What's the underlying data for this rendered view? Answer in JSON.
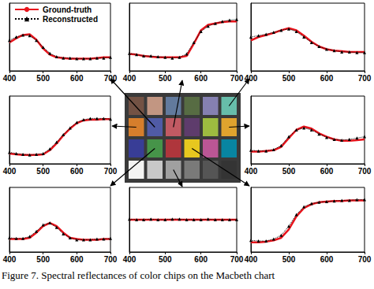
{
  "chart_data": [
    {
      "type": "line",
      "x": [
        400,
        420,
        440,
        460,
        480,
        500,
        520,
        540,
        560,
        580,
        600,
        620,
        640,
        660,
        680,
        700
      ],
      "xlim": [
        400,
        700
      ],
      "xticks": [
        400,
        500,
        600,
        700
      ],
      "ylim": [
        0,
        1
      ],
      "tick_labels": "x",
      "legend": "upper left",
      "series": [
        {
          "name": "Ground-truth",
          "color": "#e8141c",
          "line_style": "solid",
          "values": [
            0.42,
            0.48,
            0.53,
            0.54,
            0.46,
            0.33,
            0.24,
            0.2,
            0.19,
            0.18,
            0.18,
            0.18,
            0.18,
            0.19,
            0.2,
            0.2
          ]
        },
        {
          "name": "Reconstructed",
          "color": "#000000",
          "line_style": "dotted",
          "marker": "triangle",
          "values": [
            0.45,
            0.5,
            0.53,
            0.52,
            0.45,
            0.35,
            0.26,
            0.21,
            0.19,
            0.19,
            0.18,
            0.18,
            0.18,
            0.19,
            0.19,
            0.2
          ]
        }
      ]
    },
    {
      "type": "line",
      "x": [
        400,
        420,
        440,
        460,
        480,
        500,
        520,
        540,
        560,
        580,
        600,
        620,
        640,
        660,
        680,
        700
      ],
      "xlim": [
        400,
        700
      ],
      "xticks": [
        400,
        500,
        600,
        700
      ],
      "ylim": [
        0,
        1
      ],
      "tick_labels": "x",
      "series": [
        {
          "name": "Ground-truth",
          "color": "#e8141c",
          "line_style": "solid",
          "values": [
            0.25,
            0.24,
            0.22,
            0.21,
            0.2,
            0.2,
            0.2,
            0.2,
            0.22,
            0.4,
            0.6,
            0.68,
            0.7,
            0.72,
            0.73,
            0.73
          ]
        },
        {
          "name": "Reconstructed",
          "color": "#000000",
          "line_style": "dotted",
          "marker": "triangle",
          "values": [
            0.26,
            0.24,
            0.22,
            0.22,
            0.21,
            0.2,
            0.19,
            0.2,
            0.25,
            0.42,
            0.58,
            0.66,
            0.7,
            0.73,
            0.75,
            0.76
          ]
        }
      ]
    },
    {
      "type": "line",
      "x": [
        400,
        420,
        440,
        460,
        480,
        500,
        520,
        540,
        560,
        580,
        600,
        620,
        640,
        660,
        680,
        700
      ],
      "xlim": [
        400,
        700
      ],
      "xticks": [
        400,
        500,
        600,
        700
      ],
      "ylim": [
        0,
        1
      ],
      "tick_labels": "x",
      "series": [
        {
          "name": "Ground-truth",
          "color": "#e8141c",
          "line_style": "solid",
          "values": [
            0.45,
            0.5,
            0.53,
            0.56,
            0.6,
            0.63,
            0.6,
            0.52,
            0.43,
            0.36,
            0.32,
            0.3,
            0.29,
            0.28,
            0.28,
            0.28
          ]
        },
        {
          "name": "Reconstructed",
          "color": "#000000",
          "line_style": "dotted",
          "marker": "triangle",
          "values": [
            0.5,
            0.52,
            0.54,
            0.57,
            0.6,
            0.62,
            0.58,
            0.5,
            0.42,
            0.36,
            0.32,
            0.3,
            0.28,
            0.28,
            0.27,
            0.27
          ]
        }
      ]
    },
    {
      "type": "line",
      "x": [
        400,
        420,
        440,
        460,
        480,
        500,
        520,
        540,
        560,
        580,
        600,
        620,
        640,
        660,
        680,
        700
      ],
      "xlim": [
        400,
        700
      ],
      "xticks": [
        400,
        500,
        600,
        700
      ],
      "ylim": [
        0,
        1
      ],
      "tick_labels": "x",
      "series": [
        {
          "name": "Ground-truth",
          "color": "#e8141c",
          "line_style": "solid",
          "values": [
            0.15,
            0.14,
            0.13,
            0.13,
            0.13,
            0.14,
            0.2,
            0.3,
            0.42,
            0.52,
            0.6,
            0.64,
            0.65,
            0.65,
            0.66,
            0.66
          ]
        },
        {
          "name": "Reconstructed",
          "color": "#000000",
          "line_style": "dotted",
          "marker": "triangle",
          "values": [
            0.17,
            0.15,
            0.14,
            0.13,
            0.14,
            0.15,
            0.22,
            0.32,
            0.43,
            0.53,
            0.61,
            0.65,
            0.67,
            0.67,
            0.67,
            0.66
          ]
        }
      ]
    },
    {
      "type": "line",
      "x": [
        400,
        420,
        440,
        460,
        480,
        500,
        520,
        540,
        560,
        580,
        600,
        620,
        640,
        660,
        680,
        700
      ],
      "xlim": [
        400,
        700
      ],
      "xticks": [
        400,
        500,
        600,
        700
      ],
      "ylim": [
        0,
        1
      ],
      "tick_labels": "x",
      "series": [
        {
          "name": "Ground-truth",
          "color": "#e8141c",
          "line_style": "solid",
          "values": [
            0.18,
            0.18,
            0.19,
            0.2,
            0.25,
            0.38,
            0.5,
            0.55,
            0.52,
            0.45,
            0.4,
            0.36,
            0.34,
            0.34,
            0.35,
            0.36
          ]
        },
        {
          "name": "Reconstructed",
          "color": "#000000",
          "line_style": "dotted",
          "marker": "triangle",
          "values": [
            0.2,
            0.19,
            0.19,
            0.21,
            0.27,
            0.4,
            0.5,
            0.53,
            0.5,
            0.44,
            0.39,
            0.36,
            0.35,
            0.36,
            0.38,
            0.4
          ]
        }
      ]
    },
    {
      "type": "line",
      "x": [
        400,
        420,
        440,
        460,
        480,
        500,
        520,
        540,
        560,
        580,
        600,
        620,
        640,
        660,
        680,
        700
      ],
      "xlim": [
        400,
        700
      ],
      "xticks": [
        400,
        500,
        600,
        700
      ],
      "ylim": [
        0,
        1
      ],
      "tick_labels": "x",
      "series": [
        {
          "name": "Ground-truth",
          "color": "#e8141c",
          "line_style": "solid",
          "values": [
            0.2,
            0.2,
            0.2,
            0.22,
            0.3,
            0.4,
            0.45,
            0.4,
            0.3,
            0.22,
            0.2,
            0.19,
            0.19,
            0.19,
            0.2,
            0.2
          ]
        },
        {
          "name": "Reconstructed",
          "color": "#000000",
          "line_style": "dotted",
          "marker": "triangle",
          "values": [
            0.22,
            0.21,
            0.21,
            0.24,
            0.32,
            0.42,
            0.45,
            0.38,
            0.28,
            0.22,
            0.19,
            0.19,
            0.19,
            0.2,
            0.2,
            0.21
          ]
        }
      ]
    },
    {
      "type": "line",
      "x": [
        400,
        420,
        440,
        460,
        480,
        500,
        520,
        540,
        560,
        580,
        600,
        620,
        640,
        660,
        680,
        700
      ],
      "xlim": [
        400,
        700
      ],
      "xticks": [
        400,
        500,
        600,
        700
      ],
      "ylim": [
        0,
        1
      ],
      "tick_labels": "x",
      "series": [
        {
          "name": "Ground-truth",
          "color": "#e8141c",
          "line_style": "solid",
          "values": [
            0.5,
            0.5,
            0.5,
            0.5,
            0.5,
            0.5,
            0.5,
            0.5,
            0.5,
            0.5,
            0.5,
            0.5,
            0.5,
            0.5,
            0.5,
            0.5
          ]
        },
        {
          "name": "Reconstructed",
          "color": "#000000",
          "line_style": "dotted",
          "marker": "triangle",
          "values": [
            0.51,
            0.5,
            0.5,
            0.51,
            0.5,
            0.5,
            0.51,
            0.51,
            0.5,
            0.5,
            0.5,
            0.51,
            0.5,
            0.5,
            0.5,
            0.5
          ]
        }
      ]
    },
    {
      "type": "line",
      "x": [
        400,
        420,
        440,
        460,
        480,
        500,
        520,
        540,
        560,
        580,
        600,
        620,
        640,
        660,
        680,
        700
      ],
      "xlim": [
        400,
        700
      ],
      "xticks": [
        400,
        500,
        600,
        700
      ],
      "ylim": [
        0,
        1
      ],
      "tick_labels": "x",
      "series": [
        {
          "name": "Ground-truth",
          "color": "#e8141c",
          "line_style": "solid",
          "values": [
            0.15,
            0.15,
            0.16,
            0.18,
            0.22,
            0.35,
            0.55,
            0.68,
            0.74,
            0.77,
            0.78,
            0.79,
            0.79,
            0.8,
            0.8,
            0.8
          ]
        },
        {
          "name": "Reconstructed",
          "color": "#000000",
          "line_style": "dotted",
          "marker": "triangle",
          "values": [
            0.18,
            0.17,
            0.17,
            0.2,
            0.26,
            0.4,
            0.58,
            0.7,
            0.75,
            0.77,
            0.78,
            0.79,
            0.8,
            0.8,
            0.81,
            0.81
          ]
        }
      ]
    }
  ],
  "macbeth_chart": {
    "colors": [
      "#735244",
      "#c29682",
      "#627a9d",
      "#576c43",
      "#8580b1",
      "#67bdaa",
      "#d67e2c",
      "#505ba6",
      "#c15a63",
      "#5e3c6c",
      "#9dbc40",
      "#e0a32e",
      "#383d96",
      "#469449",
      "#af363c",
      "#e7c71f",
      "#bb5695",
      "#0885a1",
      "#f3f3f2",
      "#c8c8c8",
      "#a0a0a0",
      "#7a7a79",
      "#555555",
      "#343434"
    ]
  },
  "caption": "Figure 7. Spectral reflectances of color chips on the Macbeth chart"
}
